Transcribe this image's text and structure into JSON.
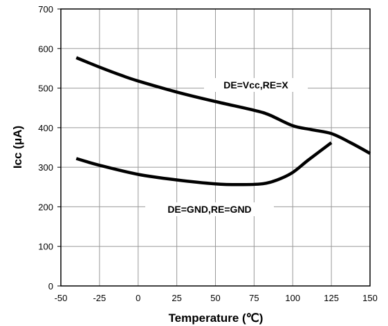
{
  "chart_data": {
    "type": "line",
    "title": "",
    "xlabel": "Temperature (℃)",
    "ylabel": "Icc (μA)",
    "xlim": [
      -50,
      150
    ],
    "ylim": [
      0,
      700
    ],
    "xticks": [
      "-50",
      "-25",
      "0",
      "25",
      "50",
      "75",
      "100",
      "125",
      "150"
    ],
    "yticks": [
      "0",
      "100",
      "200",
      "300",
      "400",
      "500",
      "600",
      "700"
    ],
    "grid": true,
    "legend": "none",
    "series": [
      {
        "name": "DE=Vcc,RE=X",
        "color": "#000000",
        "x": [
          -40,
          -25,
          -10,
          0,
          25,
          50,
          75,
          85,
          100,
          112,
          125,
          137,
          150
        ],
        "y": [
          577,
          553,
          531,
          518,
          490,
          466,
          444,
          432,
          405,
          395,
          385,
          363,
          335
        ]
      },
      {
        "name": "DE=GND,RE=GND",
        "color": "#000000",
        "x": [
          -40,
          -25,
          0,
          25,
          50,
          65,
          80,
          90,
          100,
          110,
          125
        ],
        "y": [
          322,
          305,
          282,
          268,
          258,
          256,
          258,
          268,
          287,
          318,
          362
        ]
      }
    ]
  }
}
